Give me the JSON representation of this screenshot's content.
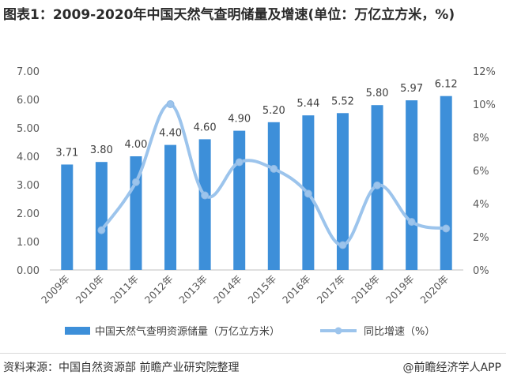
{
  "title": "图表1：2009-2020年中国天然气查明储量及增速(单位：万亿立方米，%)",
  "source": "资料来源：中国自然资源部 前瞻产业研究院整理",
  "credit": "@前瞻经济学人APP",
  "colors": {
    "bar": "#3d8fd9",
    "line": "#9cc4ec",
    "axis_text": "#595959"
  },
  "chart_data": {
    "type": "bar+line",
    "categories": [
      "2009年",
      "2010年",
      "2011年",
      "2012年",
      "2013年",
      "2014年",
      "2015年",
      "2016年",
      "2017年",
      "2018年",
      "2019年",
      "2020年"
    ],
    "series": [
      {
        "name": "中国天然气查明资源储量（万亿立方米）",
        "type": "bar",
        "axis": "left",
        "values": [
          3.71,
          3.8,
          4.0,
          4.4,
          4.6,
          4.9,
          5.2,
          5.44,
          5.52,
          5.8,
          5.97,
          6.12
        ],
        "labels": [
          "3.71",
          "3.80",
          "4.00",
          "4.40",
          "4.60",
          "4.90",
          "5.20",
          "5.44",
          "5.52",
          "5.80",
          "5.97",
          "6.12"
        ]
      },
      {
        "name": "同比增速（%）",
        "type": "line",
        "axis": "right",
        "smooth": true,
        "values": [
          null,
          2.4,
          5.3,
          10.0,
          4.5,
          6.5,
          6.1,
          4.6,
          1.5,
          5.1,
          2.9,
          2.5
        ]
      }
    ],
    "y_left": {
      "ylim": [
        0,
        7
      ],
      "ticks": [
        "0.00",
        "1.00",
        "2.00",
        "3.00",
        "4.00",
        "5.00",
        "6.00",
        "7.00"
      ]
    },
    "y_right": {
      "ylim": [
        0,
        12
      ],
      "ticks": [
        "0%",
        "2%",
        "4%",
        "6%",
        "8%",
        "10%",
        "12%"
      ]
    },
    "legend_position": "bottom",
    "grid": false
  }
}
